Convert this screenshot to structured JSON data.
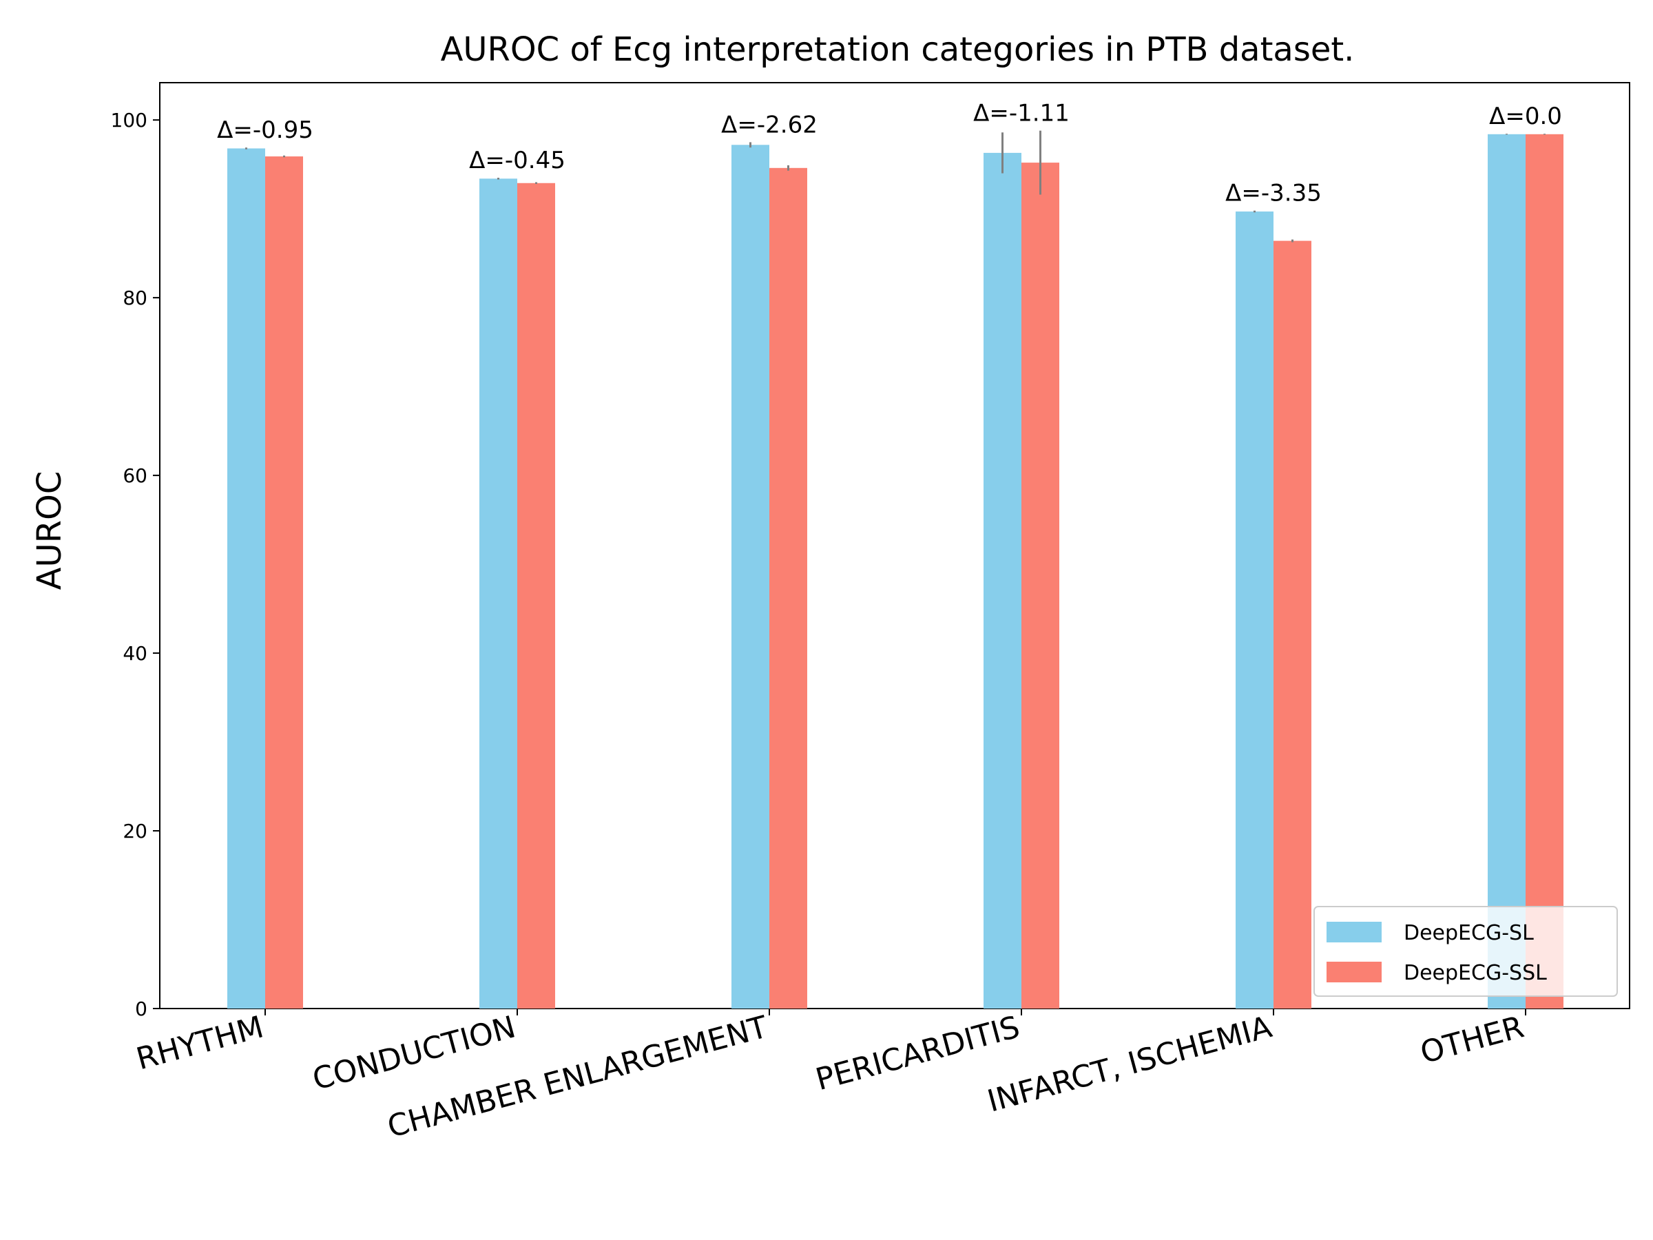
{
  "chart_data": {
    "type": "bar",
    "title": "AUROC of Ecg interpretation categories in PTB dataset.",
    "xlabel": "",
    "ylabel": "AUROC",
    "ylim": [
      0,
      104.2
    ],
    "yticks": [
      0,
      20,
      40,
      60,
      80,
      100
    ],
    "categories": [
      "RHYTHM",
      "CONDUCTION",
      "CHAMBER ENLARGEMENT",
      "PERICARDITIS",
      "INFARCT, ISCHEMIA",
      "OTHER"
    ],
    "series": [
      {
        "name": "DeepECG-SL",
        "color": "#87CEEB",
        "values": [
          96.8,
          93.4,
          97.2,
          96.3,
          89.7,
          98.4
        ],
        "errors": [
          0.1,
          0.1,
          0.3,
          2.3,
          0.1,
          0.05
        ]
      },
      {
        "name": "DeepECG-SSL",
        "color": "#FA8072",
        "values": [
          95.9,
          92.9,
          94.6,
          95.2,
          86.4,
          98.4
        ],
        "errors": [
          0.1,
          0.1,
          0.3,
          3.6,
          0.15,
          0.05
        ]
      }
    ],
    "annotations": [
      "Δ=-0.95",
      "Δ=-0.45",
      "Δ=-2.62",
      "Δ=-1.11",
      "Δ=-3.35",
      "Δ=0.0"
    ],
    "legend": {
      "position": "lower-right"
    },
    "grid": false
  }
}
